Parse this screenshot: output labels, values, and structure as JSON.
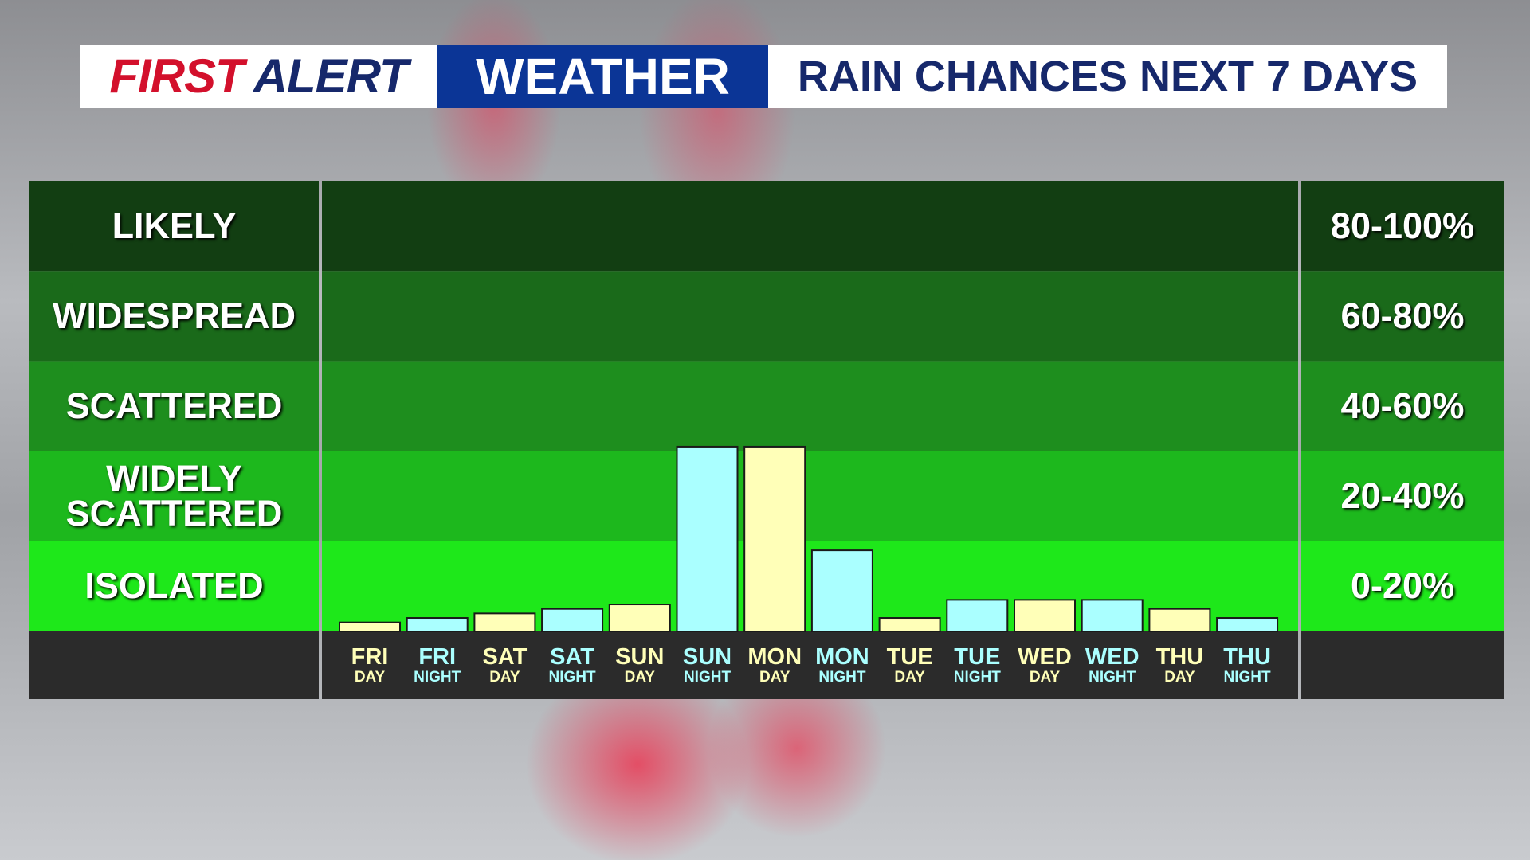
{
  "chart_data": {
    "type": "bar",
    "title_first": "FIRST",
    "title_alert": "ALERT",
    "title_weather": "WEATHER",
    "title": "RAIN CHANCES NEXT 7 DAYS",
    "categories": [
      [
        "FRI",
        "DAY"
      ],
      [
        "FRI",
        "NIGHT"
      ],
      [
        "SAT",
        "DAY"
      ],
      [
        "SAT",
        "NIGHT"
      ],
      [
        "SUN",
        "DAY"
      ],
      [
        "SUN",
        "NIGHT"
      ],
      [
        "MON",
        "DAY"
      ],
      [
        "MON",
        "NIGHT"
      ],
      [
        "TUE",
        "DAY"
      ],
      [
        "TUE",
        "NIGHT"
      ],
      [
        "WED",
        "DAY"
      ],
      [
        "WED",
        "NIGHT"
      ],
      [
        "THU",
        "DAY"
      ],
      [
        "THU",
        "NIGHT"
      ]
    ],
    "values": [
      2,
      3,
      4,
      5,
      6,
      41,
      41,
      18,
      3,
      7,
      7,
      7,
      5,
      3
    ],
    "colors": [
      "#ffffb8",
      "#aaffff",
      "#ffffb8",
      "#aaffff",
      "#ffffb8",
      "#aaffff",
      "#ffffb8",
      "#aaffff",
      "#ffffb8",
      "#aaffff",
      "#ffffb8",
      "#aaffff",
      "#ffffb8",
      "#aaffff"
    ],
    "ylim": [
      0,
      100
    ],
    "yticks": [
      0,
      20,
      40,
      60,
      80,
      100
    ],
    "bands": [
      {
        "name": "ISOLATED",
        "range": "0-20%",
        "color": "#1ee81a"
      },
      {
        "name": "WIDELY SCATTERED",
        "range": "20-40%",
        "color": "#1db81d"
      },
      {
        "name": "SCATTERED",
        "range": "40-60%",
        "color": "#1e8e1e"
      },
      {
        "name": "WIDESPREAD",
        "range": "60-80%",
        "color": "#1a6a1a"
      },
      {
        "name": "LIKELY",
        "range": "80-100%",
        "color": "#123e12"
      }
    ]
  }
}
